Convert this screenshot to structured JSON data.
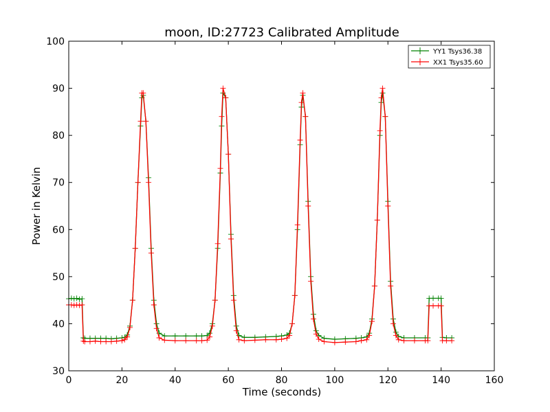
{
  "chart_data": {
    "type": "line",
    "title": "moon, ID:27723 Calibrated Amplitude",
    "xlabel": "Time (seconds)",
    "ylabel": "Power in Kelvin",
    "xlim": [
      0,
      160
    ],
    "ylim": [
      30,
      100
    ],
    "xticks": [
      0,
      20,
      40,
      60,
      80,
      100,
      120,
      140,
      160
    ],
    "yticks": [
      30,
      40,
      50,
      60,
      70,
      80,
      90,
      100
    ],
    "grid": false,
    "legend_position": "top-right",
    "marker": "+",
    "series": [
      {
        "name": "YY1 Tsys36.38",
        "color": "#008000",
        "x": [
          0,
          1,
          2,
          3,
          4,
          5,
          5.5,
          6,
          8,
          10,
          12,
          14,
          16,
          18,
          20,
          21,
          22,
          23,
          24,
          25,
          26,
          27,
          27.5,
          28,
          29,
          30,
          31,
          32,
          33,
          34,
          36,
          40,
          44,
          48,
          50,
          52,
          53,
          54,
          55,
          56,
          57,
          57.5,
          58,
          59,
          60,
          61,
          62,
          63,
          64,
          66,
          70,
          74,
          78,
          80,
          82,
          83,
          84,
          85,
          86,
          87,
          87.5,
          88,
          89,
          90,
          91,
          92,
          93,
          94,
          96,
          100,
          104,
          108,
          110,
          112,
          113,
          114,
          115,
          116,
          117,
          117.5,
          118,
          119,
          120,
          121,
          122,
          123,
          124,
          126,
          130,
          134,
          135,
          135.5,
          137,
          139,
          140,
          140.5,
          142,
          144
        ],
        "y": [
          45.3,
          45.4,
          45.3,
          45.4,
          45.2,
          45.3,
          37,
          36.9,
          36.9,
          36.9,
          36.9,
          36.9,
          36.8,
          36.9,
          37,
          37.1,
          37.6,
          39.5,
          45,
          56,
          70,
          82,
          88,
          88.5,
          83,
          71,
          56,
          45,
          40,
          38,
          37.4,
          37.4,
          37.4,
          37.4,
          37.4,
          37.5,
          38,
          40,
          45,
          56,
          72,
          82,
          89,
          88,
          76,
          59,
          46,
          39.5,
          37.5,
          37.1,
          37.1,
          37.2,
          37.3,
          37.4,
          37.6,
          38,
          40,
          46,
          60,
          78,
          86,
          88.5,
          84,
          66,
          50,
          42,
          38.5,
          37.5,
          36.9,
          36.7,
          36.8,
          36.9,
          37,
          37.2,
          38,
          41,
          48,
          62,
          80,
          87,
          89,
          84,
          66,
          49,
          41,
          38.2,
          37.3,
          37,
          37,
          37,
          37,
          45.4,
          45.4,
          45.4,
          45.4,
          37.1,
          37,
          37
        ],
        "visible_points": null
      },
      {
        "name": "XX1 Tsys35.60",
        "color": "#ff0000",
        "x": [
          0,
          1,
          2,
          3,
          4,
          5,
          5.5,
          6,
          8,
          10,
          12,
          14,
          16,
          18,
          20,
          21,
          22,
          23,
          24,
          25,
          26,
          27,
          27.5,
          28,
          29,
          30,
          31,
          32,
          33,
          34,
          36,
          40,
          44,
          48,
          50,
          52,
          53,
          54,
          55,
          56,
          57,
          57.5,
          58,
          59,
          60,
          61,
          62,
          63,
          64,
          66,
          70,
          74,
          78,
          80,
          82,
          83,
          84,
          85,
          86,
          87,
          87.5,
          88,
          89,
          90,
          91,
          92,
          93,
          94,
          96,
          100,
          104,
          108,
          110,
          112,
          113,
          114,
          115,
          116,
          117,
          117.5,
          118,
          119,
          120,
          121,
          122,
          123,
          124,
          126,
          130,
          134,
          135,
          135.5,
          137,
          139,
          140,
          140.5,
          142,
          144
        ],
        "y": [
          44,
          44,
          43.9,
          44,
          43.9,
          44,
          36.3,
          36.2,
          36.2,
          36.3,
          36.2,
          36.2,
          36.2,
          36.3,
          36.4,
          36.6,
          37.2,
          39.2,
          45,
          56,
          70,
          83,
          89,
          89,
          83,
          70,
          55,
          44,
          39,
          37,
          36.5,
          36.4,
          36.4,
          36.4,
          36.4,
          36.5,
          37.2,
          39.5,
          45,
          57,
          73,
          84,
          90,
          88,
          76,
          58,
          45,
          38.5,
          36.6,
          36.4,
          36.5,
          36.6,
          36.6,
          36.7,
          36.9,
          37.5,
          40,
          46,
          61,
          79,
          87,
          89,
          84,
          65,
          49,
          41,
          37.8,
          36.7,
          36.2,
          36,
          36.1,
          36.2,
          36.4,
          36.6,
          37.5,
          40.5,
          48,
          62,
          81,
          88,
          90,
          84,
          65,
          48,
          40,
          37.5,
          36.6,
          36.4,
          36.4,
          36.4,
          36.4,
          43.8,
          43.8,
          43.8,
          43.8,
          36.4,
          36.4,
          36.4
        ],
        "visible_points": null
      }
    ]
  }
}
